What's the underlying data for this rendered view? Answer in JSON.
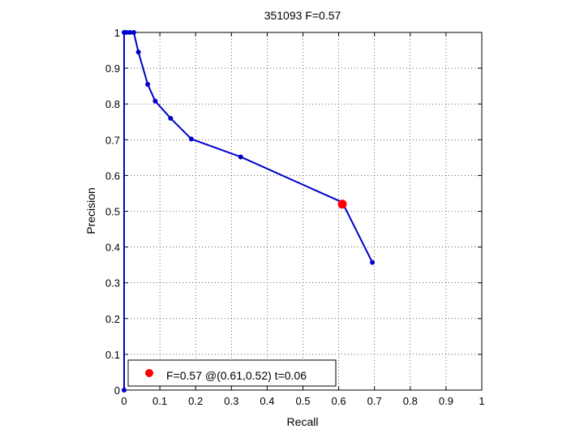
{
  "chart_data": {
    "type": "line",
    "title": "351093 F=0.57",
    "xlabel": "Recall",
    "ylabel": "Precision",
    "xlim": [
      0,
      1
    ],
    "ylim": [
      0,
      1
    ],
    "grid": true,
    "legend_placement": "bottom-left",
    "x_ticks": [
      "0",
      "0.1",
      "0.2",
      "0.3",
      "0.4",
      "0.5",
      "0.6",
      "0.7",
      "0.8",
      "0.9",
      "1"
    ],
    "y_ticks": [
      "0",
      "0.1",
      "0.2",
      "0.3",
      "0.4",
      "0.5",
      "0.6",
      "0.7",
      "0.8",
      "0.9",
      "1"
    ],
    "series": [
      {
        "color": "#0000cc",
        "points": [
          {
            "x": 0.0,
            "y": 0.0
          },
          {
            "x": 0.0,
            "y": 1.0
          },
          {
            "x": 0.006,
            "y": 1.0
          },
          {
            "x": 0.016,
            "y": 1.0
          },
          {
            "x": 0.027,
            "y": 1.0
          },
          {
            "x": 0.04,
            "y": 0.945
          },
          {
            "x": 0.066,
            "y": 0.855
          },
          {
            "x": 0.087,
            "y": 0.808
          },
          {
            "x": 0.13,
            "y": 0.76
          },
          {
            "x": 0.188,
            "y": 0.702
          },
          {
            "x": 0.326,
            "y": 0.652
          },
          {
            "x": 0.61,
            "y": 0.525
          },
          {
            "x": 0.694,
            "y": 0.357
          }
        ]
      }
    ],
    "highlight": {
      "x": 0.61,
      "y": 0.52,
      "color": "#ff0000",
      "label": "F=0.57 @(0.61,0.52) t=0.06"
    }
  }
}
